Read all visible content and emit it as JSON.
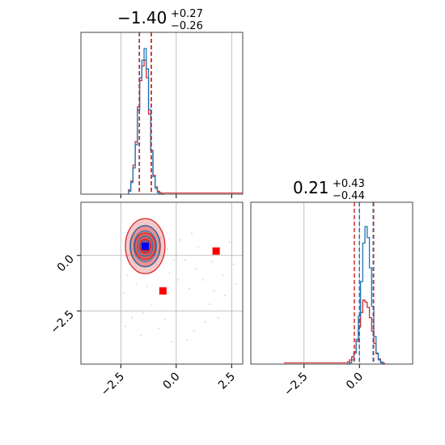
{
  "chart_data": {
    "type": "corner",
    "titles": [
      {
        "value": "−1.40",
        "plus": "+0.27",
        "minus": "−0.26"
      },
      {
        "value": "0.21",
        "plus": "+0.43",
        "minus": "−0.44"
      }
    ],
    "param1_axis": {
      "range": [
        -4.3,
        3.0
      ],
      "ticks": [
        -2.5,
        0.0,
        2.5
      ],
      "tick_labels": [
        "−2.5",
        "0.0",
        "2.5"
      ]
    },
    "param2_axis": {
      "range": [
        -4.9,
        2.4
      ],
      "ticks": [
        -2.5,
        0.0
      ],
      "tick_labels": [
        "−2.5",
        "0.0"
      ]
    },
    "grid": true,
    "colors": {
      "blue": "#1f77b4",
      "red": "#d62728",
      "blue_marker": "#0000ff",
      "red_marker": "#ff0000",
      "grid": "#b0b0b0"
    },
    "hist1": {
      "bins": [
        -2.1,
        -2.0,
        -1.9,
        -1.8,
        -1.7,
        -1.6,
        -1.5,
        -1.4,
        -1.3,
        -1.2,
        -1.1,
        -1.0,
        -0.9,
        -0.8,
        -0.7,
        -0.6
      ],
      "blue": [
        0.02,
        0.08,
        0.18,
        0.34,
        0.58,
        0.8,
        0.92,
        1.0,
        0.86,
        0.58,
        0.3,
        0.12,
        0.04,
        0.01,
        0.0,
        0.0
      ],
      "red": [
        0.03,
        0.09,
        0.2,
        0.36,
        0.6,
        0.78,
        0.88,
        0.92,
        0.8,
        0.55,
        0.3,
        0.13,
        0.05,
        0.02,
        0.01,
        0.0
      ],
      "red_quantiles": [
        -1.66,
        -1.13
      ],
      "blue_quantiles": [
        -1.67,
        -1.12
      ]
    },
    "hist2": {
      "bins": [
        -0.5,
        -0.4,
        -0.3,
        -0.2,
        -0.1,
        0.0,
        0.1,
        0.2,
        0.3,
        0.4,
        0.5,
        0.6,
        0.7,
        0.8,
        0.9,
        1.0,
        1.1
      ],
      "blue": [
        0.0,
        0.01,
        0.03,
        0.08,
        0.18,
        0.35,
        0.6,
        0.88,
        1.0,
        0.92,
        0.7,
        0.42,
        0.2,
        0.08,
        0.03,
        0.01,
        0.0
      ],
      "red": [
        0.02,
        0.04,
        0.07,
        0.12,
        0.22,
        0.36,
        0.5,
        0.62,
        0.6,
        0.55,
        0.45,
        0.32,
        0.2,
        0.1,
        0.05,
        0.02,
        0.01
      ],
      "red_quantiles": [
        -0.23,
        0.64
      ],
      "blue_quantiles": [
        0.0,
        0.62
      ]
    },
    "contour_center": [
      -1.4,
      0.42
    ],
    "contour_levels": [
      [
        0.25,
        0.16
      ],
      [
        0.45,
        0.3
      ],
      [
        0.65,
        0.46
      ],
      [
        0.85,
        0.62
      ]
    ],
    "markers": {
      "blue": [
        [
          -1.4,
          0.42
        ]
      ],
      "red": [
        [
          -1.4,
          0.38
        ],
        [
          -0.6,
          -1.6
        ],
        [
          1.8,
          0.2
        ]
      ]
    },
    "scatter_points": [
      [
        -2.2,
        -0.9
      ],
      [
        -1.8,
        -1.3
      ],
      [
        -0.9,
        -0.4
      ],
      [
        -0.3,
        -0.8
      ],
      [
        0.4,
        -0.2
      ],
      [
        0.9,
        -0.6
      ],
      [
        1.2,
        -1.1
      ],
      [
        1.6,
        -0.3
      ],
      [
        2.1,
        -0.9
      ],
      [
        2.6,
        -0.4
      ],
      [
        -1.1,
        -2.2
      ],
      [
        -0.5,
        -2.9
      ],
      [
        0.3,
        -2.5
      ],
      [
        0.8,
        -3.4
      ],
      [
        -1.6,
        -3.6
      ],
      [
        -2.0,
        -2.8
      ],
      [
        1.5,
        -2.2
      ],
      [
        2.2,
        -1.8
      ],
      [
        -0.2,
        -3.9
      ],
      [
        0.6,
        -1.5
      ],
      [
        -1.9,
        0.9
      ],
      [
        -0.7,
        0.8
      ],
      [
        0.2,
        0.7
      ],
      [
        1.0,
        0.4
      ],
      [
        -0.4,
        0.3
      ],
      [
        -2.4,
        -1.7
      ],
      [
        -1.3,
        -1.4
      ],
      [
        0.1,
        -1.1
      ],
      [
        1.9,
        -2.8
      ],
      [
        2.7,
        -1.3
      ],
      [
        -0.8,
        -3.3
      ],
      [
        -1.5,
        -2.6
      ],
      [
        0.5,
        -3.8
      ],
      [
        -2.3,
        -3.2
      ],
      [
        1.3,
        -3.0
      ],
      [
        2.4,
        0.6
      ],
      [
        0.7,
        1.0
      ],
      [
        -1.0,
        -0.7
      ],
      [
        -0.1,
        -0.2
      ],
      [
        1.7,
        -1.6
      ]
    ]
  }
}
